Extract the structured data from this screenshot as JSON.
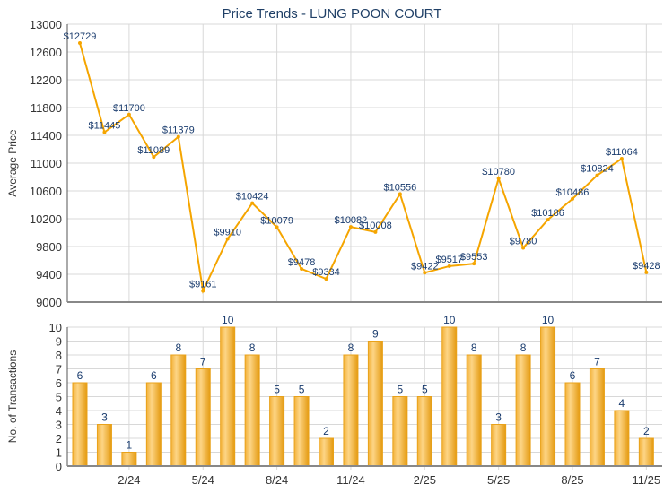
{
  "title": "Price Trends - LUNG POON COURT",
  "colors": {
    "line": "#f5a500",
    "bar": "#f0aa22",
    "label": "#1a3c6e",
    "grid": "#d8d8d8"
  },
  "chart_data": [
    {
      "type": "line",
      "title": "Price Trends - LUNG POON COURT",
      "ylabel": "Average Price",
      "ylim": [
        9000,
        13000
      ],
      "yticks": [
        "9000",
        "9400",
        "9800",
        "10200",
        "10600",
        "11000",
        "11400",
        "11800",
        "12200",
        "12600",
        "13000"
      ],
      "xticks": [
        {
          "index": 2,
          "label": "2/24"
        },
        {
          "index": 5,
          "label": "5/24"
        },
        {
          "index": 8,
          "label": "8/24"
        },
        {
          "index": 11,
          "label": "11/24"
        },
        {
          "index": 14,
          "label": "2/25"
        },
        {
          "index": 17,
          "label": "5/25"
        },
        {
          "index": 20,
          "label": "8/25"
        },
        {
          "index": 23,
          "label": "11/25"
        }
      ],
      "values": [
        12729,
        11445,
        11700,
        11089,
        11379,
        9161,
        9910,
        10424,
        10079,
        9478,
        9334,
        10082,
        10008,
        10556,
        9422,
        9517,
        9553,
        10780,
        9780,
        10186,
        10486,
        10824,
        11064,
        9428
      ],
      "labels": [
        "$12729",
        "$11445",
        "$11700",
        "$11089",
        "$11379",
        "$9161",
        "$9910",
        "$10424",
        "$10079",
        "$9478",
        "$9334",
        "$10082",
        "$10008",
        "$10556",
        "$9422",
        "$9517",
        "$9553",
        "$10780",
        "$9780",
        "$10186",
        "$10486",
        "$10824",
        "$11064",
        "$9428"
      ]
    },
    {
      "type": "bar",
      "ylabel": "No. of Transactions",
      "ylim": [
        0,
        10
      ],
      "yticks": [
        "0",
        "1",
        "2",
        "3",
        "4",
        "5",
        "6",
        "7",
        "8",
        "9",
        "10"
      ],
      "xticks": [
        "2/24",
        "5/24",
        "8/24",
        "11/24",
        "2/25",
        "5/25",
        "8/25",
        "11/25"
      ],
      "values": [
        6,
        3,
        1,
        6,
        8,
        7,
        10,
        8,
        5,
        5,
        2,
        8,
        9,
        5,
        5,
        10,
        8,
        3,
        8,
        10,
        6,
        7,
        4,
        2
      ]
    }
  ]
}
